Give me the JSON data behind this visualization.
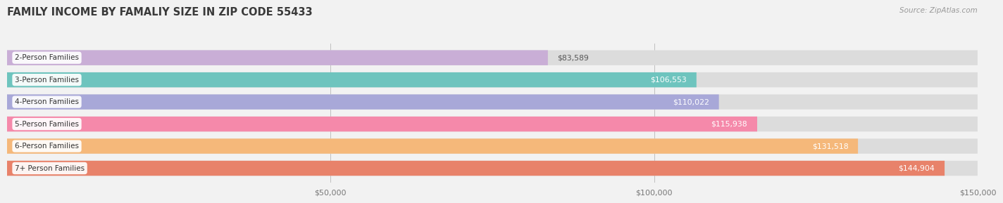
{
  "title": "FAMILY INCOME BY FAMALIY SIZE IN ZIP CODE 55433",
  "source": "Source: ZipAtlas.com",
  "categories": [
    "2-Person Families",
    "3-Person Families",
    "4-Person Families",
    "5-Person Families",
    "6-Person Families",
    "7+ Person Families"
  ],
  "values": [
    83589,
    106553,
    110022,
    115938,
    131518,
    144904
  ],
  "labels": [
    "$83,589",
    "$106,553",
    "$110,022",
    "$115,938",
    "$131,518",
    "$144,904"
  ],
  "bar_colors": [
    "#c9aed6",
    "#6ec4be",
    "#a8a8d8",
    "#f589aa",
    "#f5b87a",
    "#e8826a"
  ],
  "background_color": "#f2f2f2",
  "bar_bg_color": "#dcdcdc",
  "xlim_max": 150000,
  "xtick_vals": [
    50000,
    100000,
    150000
  ],
  "xtick_labels": [
    "$50,000",
    "$100,000",
    "$150,000"
  ],
  "title_fontsize": 10.5,
  "bar_height": 0.68,
  "value_threshold": 90000
}
